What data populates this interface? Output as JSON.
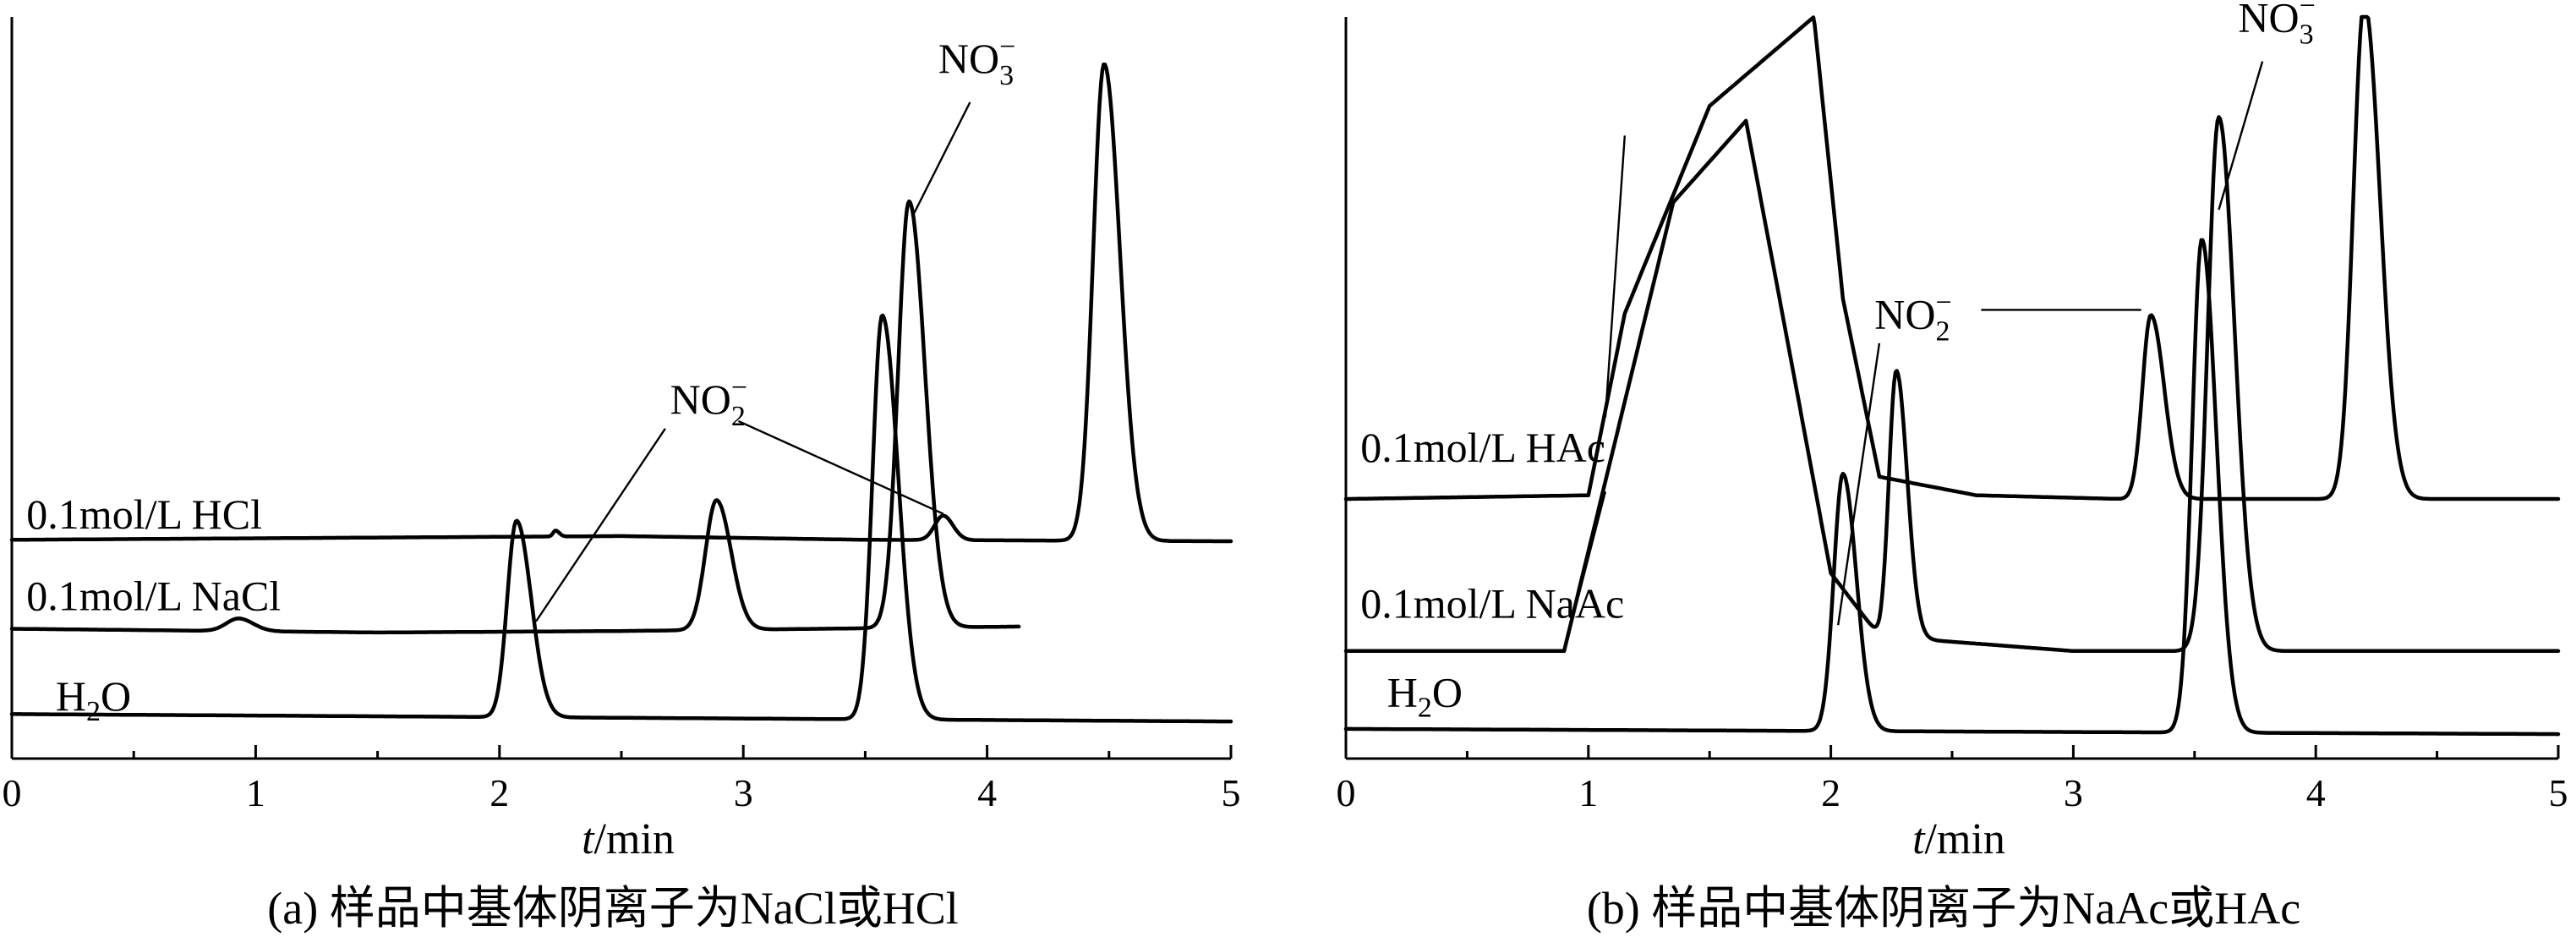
{
  "chart_data": [
    {
      "type": "line",
      "title": "",
      "caption": "(a) 样品中基体阴离子为NaCl或HCl",
      "xlabel": "t/min",
      "xlabel_italic": "t",
      "xlabel_rest": "/min",
      "ylabel": "",
      "xlim": [
        0,
        5
      ],
      "ylim": [
        0,
        100
      ],
      "xticks": [
        0,
        1,
        2,
        3,
        4,
        5
      ],
      "xtick_labels": [
        "0",
        "1",
        "2",
        "3",
        "4",
        "5"
      ],
      "grid": false,
      "legend": "none",
      "series": [
        {
          "label": "H2O",
          "label_main": "H",
          "label_sub": "2",
          "label_tail": "O",
          "label_at": [
            0.18,
            6.5
          ],
          "baseline": [
            [
              0,
              6
            ],
            [
              5,
              5
            ]
          ],
          "peaks": [
            {
              "x": 2.07,
              "height": 26.5,
              "lw": 0.038,
              "rw": 0.06
            },
            {
              "x": 3.57,
              "height": 54.5,
              "lw": 0.04,
              "rw": 0.065
            }
          ]
        },
        {
          "label": "0.1mol/L NaCl",
          "label_at": [
            0.06,
            20
          ],
          "x_end": 4.13,
          "baseline": [
            [
              0,
              17.5
            ],
            [
              1.5,
              17
            ],
            [
              2.5,
              17.2
            ],
            [
              4.13,
              17.8
            ]
          ],
          "peaks": [
            {
              "x": 0.93,
              "height": 1.7,
              "lw": 0.05,
              "rw": 0.06
            },
            {
              "x": 2.89,
              "height": 17.5,
              "lw": 0.045,
              "rw": 0.06
            },
            {
              "x": 3.68,
              "height": 57.5,
              "lw": 0.045,
              "rw": 0.065
            }
          ]
        },
        {
          "label": "0.1mol/L HCl",
          "label_at": [
            0.06,
            31
          ],
          "baseline": [
            [
              0,
              29.5
            ],
            [
              2.5,
              30
            ],
            [
              3.5,
              29.5
            ],
            [
              5,
              29.3
            ]
          ],
          "peaks": [
            {
              "x": 2.23,
              "height": 0.8,
              "lw": 0.01,
              "rw": 0.015
            },
            {
              "x": 3.82,
              "height": 3.3,
              "lw": 0.035,
              "rw": 0.04
            },
            {
              "x": 4.48,
              "height": 64.3,
              "lw": 0.045,
              "rw": 0.065
            }
          ]
        }
      ],
      "annotations": [
        {
          "main": "NO",
          "sub": "2",
          "sup": "−",
          "at": [
            2.7,
            46.5
          ],
          "leader": [
            [
              2.98,
              45.5
            ],
            [
              3.82,
              33
            ]
          ],
          "leader2": [
            [
              2.68,
              44.5
            ],
            [
              2.15,
              18.5
            ]
          ]
        },
        {
          "main": "NO",
          "sub": "3",
          "sup": "−",
          "at": [
            3.8,
            92.5
          ],
          "leader": [
            [
              3.93,
              88.5
            ],
            [
              3.7,
              73.5
            ]
          ]
        }
      ]
    },
    {
      "type": "line",
      "title": "",
      "caption": "(b) 样品中基体阴离子为NaAc或HAc",
      "xlabel": "t/min",
      "xlabel_italic": "t",
      "xlabel_rest": "/min",
      "ylabel": "",
      "xlim": [
        0,
        5
      ],
      "ylim": [
        0,
        100
      ],
      "xticks": [
        0,
        1,
        2,
        3,
        4,
        5
      ],
      "xtick_labels": [
        "0",
        "1",
        "2",
        "3",
        "4",
        "5"
      ],
      "grid": false,
      "legend": "none",
      "series": [
        {
          "label": "H2O",
          "label_main": "H",
          "label_sub": "2",
          "label_tail": "O",
          "label_at": [
            0.17,
            7
          ],
          "baseline": [
            [
              0,
              4
            ],
            [
              5,
              3.3
            ]
          ],
          "peaks": [
            {
              "x": 2.05,
              "height": 34.7,
              "lw": 0.038,
              "rw": 0.055
            },
            {
              "x": 3.53,
              "height": 66.5,
              "lw": 0.04,
              "rw": 0.06
            }
          ]
        },
        {
          "label": "0.1mol/L NaAc",
          "label_at": [
            0.06,
            19
          ],
          "baseline": [
            [
              0,
              14.5
            ],
            [
              0.9,
              14.5
            ],
            [
              1.35,
              75
            ],
            [
              1.65,
              86
            ],
            [
              1.8,
              60
            ],
            [
              2.0,
              25
            ],
            [
              2.2,
              16.5
            ],
            [
              3.0,
              14.5
            ],
            [
              5,
              14.5
            ]
          ],
          "peaks": [
            {
              "x": 2.27,
              "height": 36.0,
              "lw": 0.03,
              "rw": 0.045
            },
            {
              "x": 3.6,
              "height": 72.0,
              "lw": 0.045,
              "rw": 0.065
            }
          ]
        },
        {
          "label": "0.1mol/L HAc",
          "label_at": [
            0.06,
            40
          ],
          "baseline": [
            [
              0,
              35
            ],
            [
              1.0,
              35.5
            ],
            [
              1.15,
              60
            ],
            [
              1.5,
              88
            ],
            [
              1.93,
              100
            ],
            [
              2.05,
              62
            ],
            [
              2.2,
              38
            ],
            [
              2.6,
              35.5
            ],
            [
              3.2,
              35
            ],
            [
              5,
              35
            ]
          ],
          "peaks": [
            {
              "x": 3.32,
              "height": 24.8,
              "lw": 0.035,
              "rw": 0.055
            },
            {
              "x": 4.2,
              "height": 67.0,
              "lw": 0.045,
              "rw": 0.065
            }
          ]
        }
      ],
      "annotations": [
        {
          "main": "NO",
          "sub": "2",
          "sup": "−",
          "at": [
            2.18,
            58
          ],
          "leader": [
            [
              2.62,
              60.5
            ],
            [
              3.28,
              60.5
            ]
          ],
          "leader2": [
            [
              2.2,
              56
            ],
            [
              2.03,
              18
            ]
          ]
        },
        {
          "main": "NO",
          "sub": "3",
          "sup": "−",
          "at": [
            3.68,
            98
          ],
          "leader": [
            [
              3.78,
              94
            ],
            [
              3.6,
              74
            ]
          ]
        },
        {
          "leader": [
            [
              1.07,
              36
            ],
            [
              0.96,
              22
            ]
          ],
          "leader2": [
            [
              1.15,
              84
            ],
            [
              1.07,
              46
            ]
          ]
        }
      ]
    }
  ]
}
